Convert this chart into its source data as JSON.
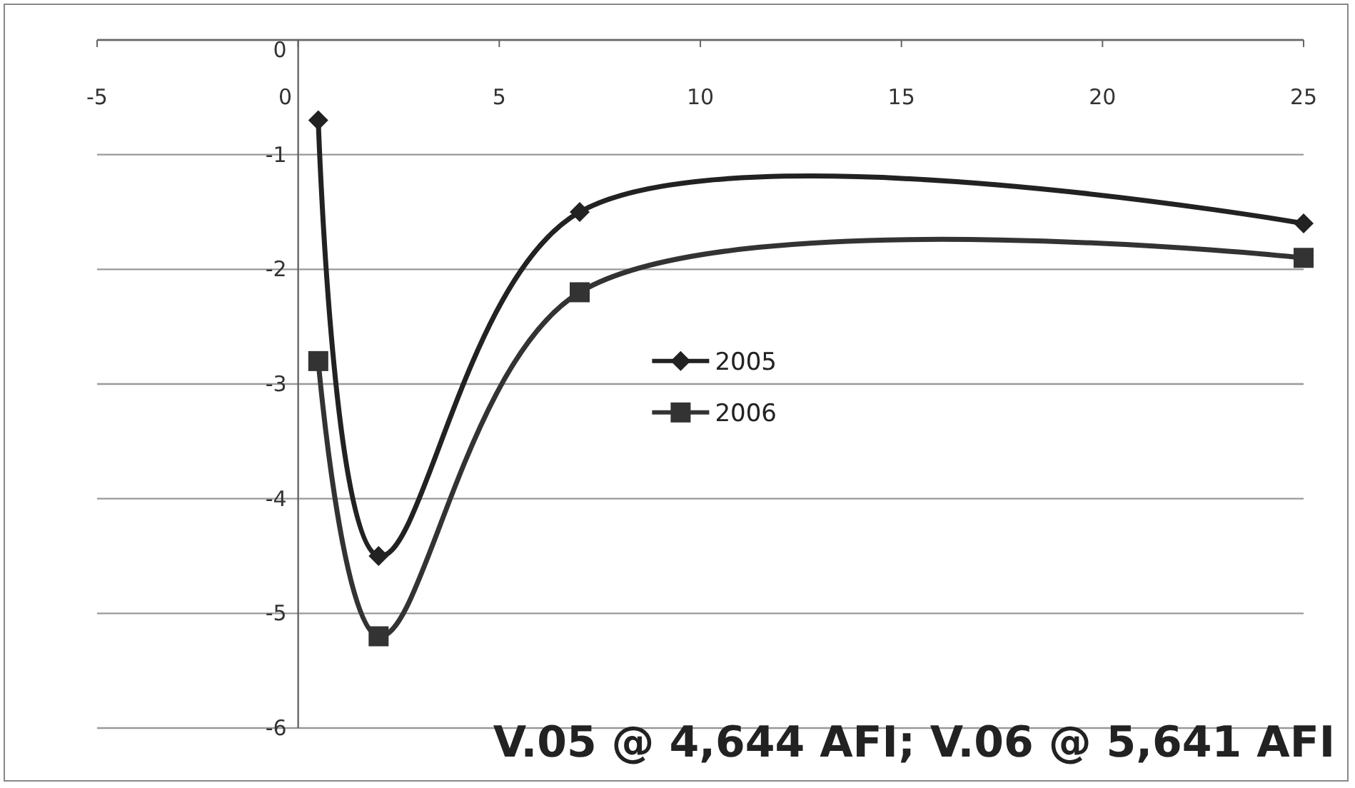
{
  "chart_data": {
    "type": "line",
    "x": [
      0.5,
      2,
      7,
      25
    ],
    "series": [
      {
        "name": "2005",
        "color": "#222222",
        "marker": "diamond",
        "values": [
          -0.7,
          -4.5,
          -1.5,
          -1.6
        ]
      },
      {
        "name": "2006",
        "color": "#333333",
        "marker": "square",
        "values": [
          -2.8,
          -5.2,
          -2.2,
          -1.9
        ]
      }
    ],
    "xlim": [
      -5,
      25
    ],
    "xticks": [
      -5,
      0,
      5,
      10,
      15,
      20,
      25
    ],
    "ylim": [
      -6,
      0
    ],
    "yticks": [
      -6,
      -5,
      -4,
      -3,
      -2,
      -1,
      0
    ],
    "grid": "y",
    "legend": "right",
    "line_style": "solid",
    "annotations": [
      "V.05 @ 4,644 AFI; V.06 @ 5,641 AFI"
    ]
  }
}
